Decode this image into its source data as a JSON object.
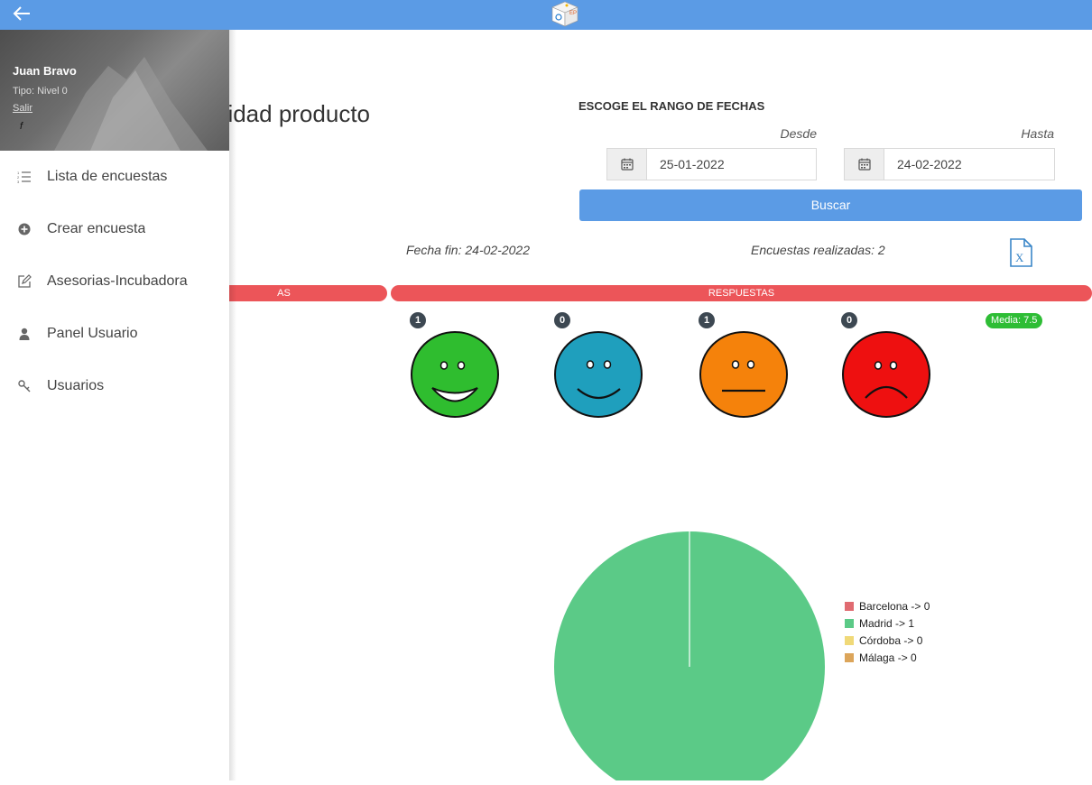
{
  "page": {
    "title": "idad producto",
    "date_range_heading": "ESCOGE EL RANGO DE FECHAS",
    "desde_label": "Desde",
    "hasta_label": "Hasta",
    "desde_value": "25-01-2022",
    "hasta_value": "24-02-2022",
    "search_label": "Buscar",
    "fecha_fin": "Fecha fin: 24-02-2022",
    "encuestas_realizadas": "Encuestas realizadas: 2"
  },
  "bands": {
    "left_label": "AS",
    "right_label": "RESPUESTAS"
  },
  "responses": {
    "counts": [
      "1",
      "0",
      "1",
      "0"
    ],
    "faces": [
      {
        "icon": "very-happy-face-icon",
        "color": "#2fbd2f"
      },
      {
        "icon": "happy-face-icon",
        "color": "#1f9fbd"
      },
      {
        "icon": "neutral-face-icon",
        "color": "#f5820b"
      },
      {
        "icon": "sad-face-icon",
        "color": "#ee1010"
      }
    ],
    "media": "Media: 7.5"
  },
  "chart_data": {
    "type": "pie",
    "categories": [
      "Barcelona",
      "Madrid",
      "Córdoba",
      "Málaga"
    ],
    "values": [
      0,
      1,
      0,
      0
    ],
    "legend": [
      "Barcelona -> 0",
      "Madrid -> 1",
      "Córdoba -> 0",
      "Málaga -> 0"
    ],
    "colors": [
      "#e06b71",
      "#5bca87",
      "#f0d978",
      "#dca55a"
    ],
    "legend_position": "right"
  },
  "drawer": {
    "user_name": "Juan Bravo",
    "user_level": "Tipo: Nivel 0",
    "logout": "Salir",
    "mark": "f",
    "items": [
      {
        "label": "Lista de encuestas",
        "icon": "list-icon"
      },
      {
        "label": "Crear encuesta",
        "icon": "plus-circle-icon"
      },
      {
        "label": "Asesorias-Incubadora",
        "icon": "edit-icon"
      },
      {
        "label": "Panel Usuario",
        "icon": "user-icon"
      },
      {
        "label": "Usuarios",
        "icon": "key-icon"
      }
    ]
  },
  "colors": {
    "topbar": "#5b9be5",
    "band": "#ec5559",
    "media_badge": "#2ebd35"
  }
}
